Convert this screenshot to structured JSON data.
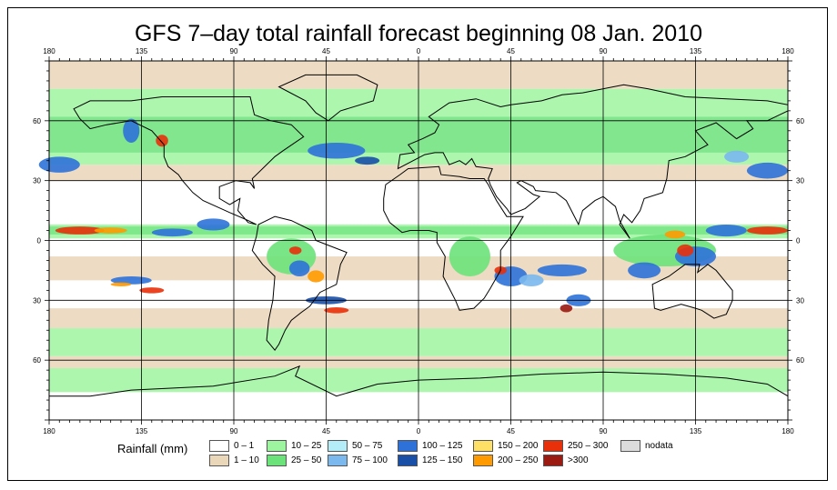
{
  "title": "GFS 7–day total rainfall forecast beginning 08 Jan. 2010",
  "map": {
    "projection": "equirectangular",
    "lon_range": [
      -180,
      180
    ],
    "lat_range": [
      -90,
      90
    ],
    "lon_ticks": [
      {
        "value": -180,
        "label": "180"
      },
      {
        "value": -135,
        "label": "135"
      },
      {
        "value": -90,
        "label": "90"
      },
      {
        "value": -45,
        "label": "45"
      },
      {
        "value": 0,
        "label": "0"
      },
      {
        "value": 45,
        "label": "45"
      },
      {
        "value": 90,
        "label": "90"
      },
      {
        "value": 135,
        "label": "135"
      },
      {
        "value": 180,
        "label": "180"
      }
    ],
    "lat_ticks": [
      {
        "value": 60,
        "label": "60"
      },
      {
        "value": 30,
        "label": "30"
      },
      {
        "value": 0,
        "label": "0"
      },
      {
        "value": -30,
        "label": "30"
      },
      {
        "value": -60,
        "label": "60"
      }
    ],
    "colors": {
      "land_outline": "#000000",
      "grid": "#000000"
    }
  },
  "legend": {
    "title": "Rainfall (mm)",
    "items": [
      {
        "label": "0 – 1",
        "color": "#ffffff"
      },
      {
        "label": "1 – 10",
        "color": "#ead6b8"
      },
      {
        "label": "10 – 25",
        "color": "#9ef5a0"
      },
      {
        "label": "25 – 50",
        "color": "#6be27a"
      },
      {
        "label": "50 – 75",
        "color": "#b4ecf8"
      },
      {
        "label": "75 – 100",
        "color": "#7ab8ee"
      },
      {
        "label": "100 – 125",
        "color": "#2e72d9"
      },
      {
        "label": "125 – 150",
        "color": "#1a4fa8"
      },
      {
        "label": "150 – 200",
        "color": "#ffe066"
      },
      {
        "label": "200 – 250",
        "color": "#ff9a00"
      },
      {
        "label": "250 – 300",
        "color": "#e8300a"
      },
      {
        "label": ">300",
        "color": "#9b1a12"
      },
      {
        "label": "nodata",
        "color": "#dcdcdc"
      }
    ]
  }
}
